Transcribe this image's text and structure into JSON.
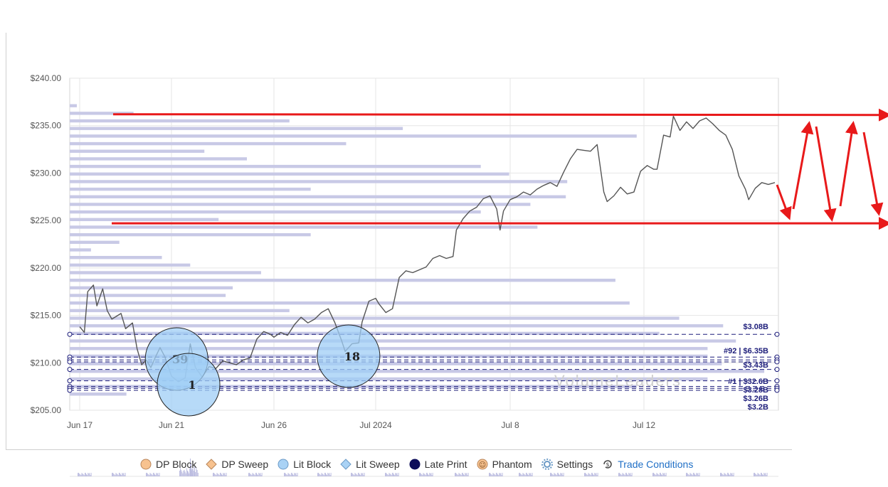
{
  "chart_data": {
    "type": "line",
    "title": "",
    "xlabel": "",
    "ylabel": "",
    "ylim": [
      205,
      240
    ],
    "y_ticks": [
      "$205.00",
      "$210.00",
      "$215.00",
      "$220.00",
      "$225.00",
      "$230.00",
      "$235.00",
      "$240.00"
    ],
    "y_tick_values": [
      205,
      210,
      215,
      220,
      225,
      230,
      235,
      240
    ],
    "x_ticks": [
      {
        "label": "Jun 17",
        "day": 0
      },
      {
        "label": "Jun 21",
        "day": 4
      },
      {
        "label": "Jun 26",
        "day": 7
      },
      {
        "label": "Jul 2024",
        "day": 10
      },
      {
        "label": "Jul 8",
        "day": 14
      },
      {
        "label": "Jul 12",
        "day": 18
      }
    ],
    "x_domain": [
      0,
      21
    ],
    "grid": true,
    "price_series": {
      "name": "",
      "color": "#555555",
      "points": [
        [
          0.0,
          213.8
        ],
        [
          0.2,
          213.2
        ],
        [
          0.35,
          217.5
        ],
        [
          0.6,
          218.2
        ],
        [
          0.75,
          216.0
        ],
        [
          1.0,
          217.8
        ],
        [
          1.2,
          215.5
        ],
        [
          1.4,
          214.6
        ],
        [
          1.6,
          214.9
        ],
        [
          1.8,
          215.2
        ],
        [
          2.0,
          213.6
        ],
        [
          2.3,
          214.2
        ],
        [
          2.5,
          211.5
        ],
        [
          2.7,
          209.8
        ],
        [
          2.9,
          210.3
        ],
        [
          3.1,
          209.5
        ],
        [
          3.3,
          210.6
        ],
        [
          3.5,
          211.6
        ],
        [
          3.7,
          210.7
        ],
        [
          3.9,
          209.3
        ],
        [
          4.0,
          208.6
        ],
        [
          4.2,
          208.0
        ],
        [
          4.4,
          208.4
        ],
        [
          4.55,
          212.0
        ],
        [
          4.7,
          209.5
        ],
        [
          4.9,
          208.5
        ],
        [
          5.1,
          209.6
        ],
        [
          5.3,
          209.4
        ],
        [
          5.5,
          210.2
        ],
        [
          5.7,
          210.0
        ],
        [
          5.9,
          209.8
        ],
        [
          6.1,
          210.3
        ],
        [
          6.3,
          210.5
        ],
        [
          6.5,
          212.5
        ],
        [
          6.7,
          213.3
        ],
        [
          6.9,
          213.0
        ],
        [
          7.0,
          212.7
        ],
        [
          7.2,
          213.2
        ],
        [
          7.4,
          212.9
        ],
        [
          7.6,
          214.0
        ],
        [
          7.8,
          214.8
        ],
        [
          8.0,
          214.2
        ],
        [
          8.2,
          214.6
        ],
        [
          8.4,
          215.3
        ],
        [
          8.6,
          215.7
        ],
        [
          8.8,
          214.2
        ],
        [
          9.0,
          212.3
        ],
        [
          9.1,
          211.2
        ],
        [
          9.3,
          212.0
        ],
        [
          9.5,
          212.1
        ],
        [
          9.6,
          214.3
        ],
        [
          9.8,
          216.5
        ],
        [
          10.0,
          216.8
        ],
        [
          10.1,
          216.2
        ],
        [
          10.3,
          215.3
        ],
        [
          10.5,
          215.7
        ],
        [
          10.7,
          219.0
        ],
        [
          10.9,
          219.7
        ],
        [
          11.1,
          219.5
        ],
        [
          11.3,
          219.8
        ],
        [
          11.5,
          220.1
        ],
        [
          11.7,
          221.0
        ],
        [
          11.9,
          221.3
        ],
        [
          12.1,
          221.0
        ],
        [
          12.3,
          221.2
        ],
        [
          12.4,
          224.0
        ],
        [
          12.6,
          225.2
        ],
        [
          12.8,
          226.0
        ],
        [
          13.0,
          226.4
        ],
        [
          13.2,
          227.3
        ],
        [
          13.4,
          227.6
        ],
        [
          13.6,
          226.2
        ],
        [
          13.7,
          224.0
        ],
        [
          13.8,
          226.0
        ],
        [
          14.0,
          227.2
        ],
        [
          14.2,
          227.5
        ],
        [
          14.4,
          228.0
        ],
        [
          14.6,
          227.7
        ],
        [
          14.8,
          228.3
        ],
        [
          15.0,
          228.7
        ],
        [
          15.2,
          229.0
        ],
        [
          15.4,
          228.6
        ],
        [
          15.6,
          230.1
        ],
        [
          15.8,
          231.5
        ],
        [
          16.0,
          232.5
        ],
        [
          16.2,
          232.4
        ],
        [
          16.4,
          232.3
        ],
        [
          16.6,
          233.0
        ],
        [
          16.8,
          228.0
        ],
        [
          16.9,
          227.0
        ],
        [
          17.1,
          227.6
        ],
        [
          17.3,
          228.5
        ],
        [
          17.5,
          227.8
        ],
        [
          17.7,
          228.0
        ],
        [
          17.9,
          230.2
        ],
        [
          18.1,
          230.8
        ],
        [
          18.3,
          230.4
        ],
        [
          18.4,
          230.4
        ],
        [
          18.6,
          234.0
        ],
        [
          18.8,
          233.8
        ],
        [
          18.9,
          236.0
        ],
        [
          19.1,
          234.5
        ],
        [
          19.3,
          235.4
        ],
        [
          19.5,
          234.7
        ],
        [
          19.7,
          235.5
        ],
        [
          19.9,
          235.8
        ],
        [
          20.1,
          235.2
        ],
        [
          20.3,
          234.5
        ],
        [
          20.5,
          234.0
        ],
        [
          20.7,
          232.5
        ],
        [
          20.9,
          229.7
        ],
        [
          21.1,
          228.3
        ],
        [
          21.2,
          227.2
        ],
        [
          21.4,
          228.4
        ],
        [
          21.6,
          229.0
        ],
        [
          21.8,
          228.8
        ],
        [
          22.0,
          229.0
        ]
      ]
    },
    "volume_profile": {
      "color": "#c8c9e6",
      "bars": [
        [
          237.1,
          0.005
        ],
        [
          236.3,
          0.045
        ],
        [
          235.5,
          0.155
        ],
        [
          234.7,
          0.235
        ],
        [
          233.9,
          0.4
        ],
        [
          233.1,
          0.195
        ],
        [
          232.3,
          0.095
        ],
        [
          231.5,
          0.125
        ],
        [
          230.7,
          0.29
        ],
        [
          229.9,
          0.31
        ],
        [
          229.1,
          0.351
        ],
        [
          228.3,
          0.17
        ],
        [
          227.5,
          0.35
        ],
        [
          226.7,
          0.325
        ],
        [
          225.9,
          0.29
        ],
        [
          225.1,
          0.105
        ],
        [
          224.3,
          0.33
        ],
        [
          223.5,
          0.17
        ],
        [
          222.7,
          0.035
        ],
        [
          221.9,
          0.015
        ],
        [
          221.1,
          0.065
        ],
        [
          220.3,
          0.085
        ],
        [
          219.5,
          0.135
        ],
        [
          218.7,
          0.385
        ],
        [
          217.9,
          0.115
        ],
        [
          217.1,
          0.11
        ],
        [
          216.3,
          0.395
        ],
        [
          215.5,
          0.155
        ],
        [
          214.7,
          0.43
        ],
        [
          213.9,
          0.461
        ],
        [
          213.1,
          0.416
        ],
        [
          212.3,
          0.47
        ],
        [
          211.5,
          0.45
        ],
        [
          210.7,
          0.45
        ],
        [
          209.9,
          0.46
        ],
        [
          209.1,
          0.49
        ],
        [
          208.3,
          0.45
        ],
        [
          207.5,
          0.4
        ],
        [
          206.7,
          0.04
        ]
      ]
    },
    "level_lines": [
      {
        "price": 213.0,
        "label": "$3.08B"
      },
      {
        "price": 210.6,
        "label": ""
      },
      {
        "price": 210.3,
        "label": "#92 | $6.35B"
      },
      {
        "price": 210.1,
        "label": ""
      },
      {
        "price": 209.3,
        "label": "$3.43B"
      },
      {
        "price": 208.1,
        "label": "#1 | $32.6B"
      },
      {
        "price": 207.5,
        "label": "$3.28B"
      },
      {
        "price": 207.3,
        "label": "$3.26B"
      },
      {
        "price": 207.1,
        "label": "$3.2B"
      }
    ],
    "trade_bubbles": [
      {
        "label": "39",
        "day": 4.15,
        "price": 210.4,
        "size": "large",
        "color": "#9fcdf6"
      },
      {
        "label": "1",
        "day": 4.5,
        "price": 207.7,
        "size": "large",
        "color": "#9fcdf6"
      },
      {
        "label": "18",
        "day": 9.2,
        "price": 210.7,
        "size": "large",
        "color": "#9fcdf6"
      }
    ],
    "annotation_lines": [
      {
        "from": [
          1.3,
          236.2
        ],
        "to": [
          23.5,
          236.2
        ],
        "color": "#e8191a"
      },
      {
        "from": [
          1.3,
          224.7
        ],
        "to": [
          23.5,
          224.7
        ],
        "color": "#e8191a"
      }
    ],
    "zigzag_arrows": [
      [
        [
          22.0,
          228.2
        ],
        [
          22.4,
          224.8
        ]
      ],
      [
        [
          22.6,
          225.0
        ],
        [
          22.9,
          235.2
        ]
      ],
      [
        [
          23.1,
          234.8
        ],
        [
          23.4,
          224.8
        ]
      ],
      [
        [
          23.5,
          225.3
        ],
        [
          23.8,
          235.2
        ]
      ],
      [
        [
          24.0,
          234.5
        ],
        [
          24.4,
          225.3
        ]
      ]
    ],
    "watermark": "VolumeLeaders",
    "volume_histogram": {
      "color": "#b9badf"
    }
  },
  "legend": [
    {
      "label": "DP Block",
      "icon": "circle-icon",
      "fill": "#f7c28f",
      "stroke": "#b8865c"
    },
    {
      "label": "DP Sweep",
      "icon": "diamond-icon",
      "fill": "#f7c28f",
      "stroke": "#b8865c"
    },
    {
      "label": "Lit Block",
      "icon": "circle-icon",
      "fill": "#a9d2f5",
      "stroke": "#6b9ac6"
    },
    {
      "label": "Lit Sweep",
      "icon": "diamond-icon",
      "fill": "#a9d2f5",
      "stroke": "#6b9ac6"
    },
    {
      "label": "Late Print",
      "icon": "circle-icon",
      "fill": "#0d0d5a",
      "stroke": "#0d0d5a"
    },
    {
      "label": "Phantom",
      "icon": "phantom-icon",
      "fill": "#f7c28f",
      "stroke": "#b8865c"
    },
    {
      "label": "Settings",
      "icon": "gear-icon",
      "fill": "#6b9ac6",
      "stroke": "#6b9ac6"
    },
    {
      "label": "Trade Conditions",
      "icon": "condition-icon",
      "fill": "#444",
      "stroke": "#444"
    }
  ]
}
